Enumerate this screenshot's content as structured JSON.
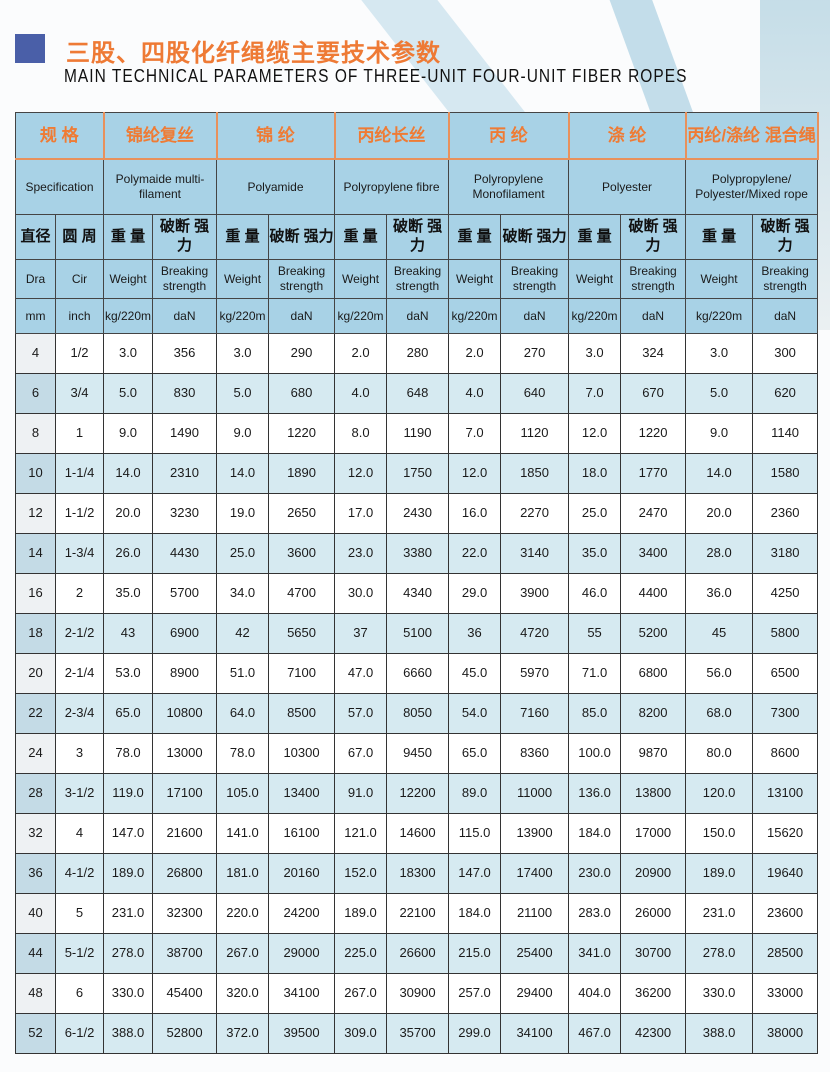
{
  "title_cn": "三股、四股化纤绳缆主要技术参数",
  "title_en": "MAIN TECHNICAL PARAMETERS OF THREE-UNIT FOUR-UNIT FIBER ROPES",
  "colors": {
    "accent": "#ef7b34",
    "header_bg": "#a8d2e6",
    "alt_row": "#d6eaf1",
    "square": "#4a5fa8"
  },
  "header": {
    "spec_cn": "规 格",
    "spec_en": "Specification",
    "materials": [
      {
        "cn": "锦纶复丝",
        "en": "Polymaide multi-filament"
      },
      {
        "cn": "锦 纶",
        "en": "Polyamide"
      },
      {
        "cn": "丙纶长丝",
        "en": "Polyropylene fibre"
      },
      {
        "cn": "丙 纶",
        "en": "Polyropylene Monofilament"
      },
      {
        "cn": "涤 纶",
        "en": "Polyester"
      },
      {
        "cn": "丙纶/涤纶 混合绳",
        "en": "Polypropylene/ Polyester/Mixed rope"
      }
    ],
    "dia_cn": "直径",
    "cir_cn": "圆 周",
    "weight_cn": "重 量",
    "break_cn": "破断 强力",
    "dia_en": "Dra",
    "cir_en": "Cir",
    "weight_en": "Weight",
    "break_en": "Breaking strength",
    "dia_unit": "mm",
    "cir_unit": "inch",
    "weight_unit": "kg/220m",
    "break_unit": "daN"
  },
  "rows": [
    [
      "4",
      "1/2",
      "3.0",
      "356",
      "3.0",
      "290",
      "2.0",
      "280",
      "2.0",
      "270",
      "3.0",
      "324",
      "3.0",
      "300"
    ],
    [
      "6",
      "3/4",
      "5.0",
      "830",
      "5.0",
      "680",
      "4.0",
      "648",
      "4.0",
      "640",
      "7.0",
      "670",
      "5.0",
      "620"
    ],
    [
      "8",
      "1",
      "9.0",
      "1490",
      "9.0",
      "1220",
      "8.0",
      "1190",
      "7.0",
      "1120",
      "12.0",
      "1220",
      "9.0",
      "1140"
    ],
    [
      "10",
      "1-1/4",
      "14.0",
      "2310",
      "14.0",
      "1890",
      "12.0",
      "1750",
      "12.0",
      "1850",
      "18.0",
      "1770",
      "14.0",
      "1580"
    ],
    [
      "12",
      "1-1/2",
      "20.0",
      "3230",
      "19.0",
      "2650",
      "17.0",
      "2430",
      "16.0",
      "2270",
      "25.0",
      "2470",
      "20.0",
      "2360"
    ],
    [
      "14",
      "1-3/4",
      "26.0",
      "4430",
      "25.0",
      "3600",
      "23.0",
      "3380",
      "22.0",
      "3140",
      "35.0",
      "3400",
      "28.0",
      "3180"
    ],
    [
      "16",
      "2",
      "35.0",
      "5700",
      "34.0",
      "4700",
      "30.0",
      "4340",
      "29.0",
      "3900",
      "46.0",
      "4400",
      "36.0",
      "4250"
    ],
    [
      "18",
      "2-1/2",
      "43",
      "6900",
      "42",
      "5650",
      "37",
      "5100",
      "36",
      "4720",
      "55",
      "5200",
      "45",
      "5800"
    ],
    [
      "20",
      "2-1/4",
      "53.0",
      "8900",
      "51.0",
      "7100",
      "47.0",
      "6660",
      "45.0",
      "5970",
      "71.0",
      "6800",
      "56.0",
      "6500"
    ],
    [
      "22",
      "2-3/4",
      "65.0",
      "10800",
      "64.0",
      "8500",
      "57.0",
      "8050",
      "54.0",
      "7160",
      "85.0",
      "8200",
      "68.0",
      "7300"
    ],
    [
      "24",
      "3",
      "78.0",
      "13000",
      "78.0",
      "10300",
      "67.0",
      "9450",
      "65.0",
      "8360",
      "100.0",
      "9870",
      "80.0",
      "8600"
    ],
    [
      "28",
      "3-1/2",
      "119.0",
      "17100",
      "105.0",
      "13400",
      "91.0",
      "12200",
      "89.0",
      "11000",
      "136.0",
      "13800",
      "120.0",
      "13100"
    ],
    [
      "32",
      "4",
      "147.0",
      "21600",
      "141.0",
      "16100",
      "121.0",
      "14600",
      "115.0",
      "13900",
      "184.0",
      "17000",
      "150.0",
      "15620"
    ],
    [
      "36",
      "4-1/2",
      "189.0",
      "26800",
      "181.0",
      "20160",
      "152.0",
      "18300",
      "147.0",
      "17400",
      "230.0",
      "20900",
      "189.0",
      "19640"
    ],
    [
      "40",
      "5",
      "231.0",
      "32300",
      "220.0",
      "24200",
      "189.0",
      "22100",
      "184.0",
      "21100",
      "283.0",
      "26000",
      "231.0",
      "23600"
    ],
    [
      "44",
      "5-1/2",
      "278.0",
      "38700",
      "267.0",
      "29000",
      "225.0",
      "26600",
      "215.0",
      "25400",
      "341.0",
      "30700",
      "278.0",
      "28500"
    ],
    [
      "48",
      "6",
      "330.0",
      "45400",
      "320.0",
      "34100",
      "267.0",
      "30900",
      "257.0",
      "29400",
      "404.0",
      "36200",
      "330.0",
      "33000"
    ],
    [
      "52",
      "6-1/2",
      "388.0",
      "52800",
      "372.0",
      "39500",
      "309.0",
      "35700",
      "299.0",
      "34100",
      "467.0",
      "42300",
      "388.0",
      "38000"
    ]
  ]
}
